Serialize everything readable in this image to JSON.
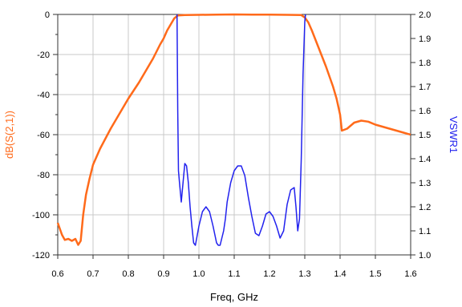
{
  "chart_data": {
    "type": "line",
    "xlabel": "Freq, GHz",
    "xlim": [
      0.6,
      1.6
    ],
    "x_ticks": [
      "0.6",
      "0.7",
      "0.8",
      "0.9",
      "1.0",
      "1.1",
      "1.2",
      "1.3",
      "1.4",
      "1.5",
      "1.6"
    ],
    "y_left": {
      "label": "dB(S(2,1))",
      "range": [
        -120,
        0
      ],
      "ticks": [
        "0",
        "-20",
        "-40",
        "-60",
        "-80",
        "-100",
        "-120"
      ],
      "color": "#ff6a1a"
    },
    "y_right": {
      "label": "VSWR1",
      "range": [
        1.0,
        2.0
      ],
      "ticks": [
        "1.0",
        "1.1",
        "1.2",
        "1.3",
        "1.4",
        "1.5",
        "1.6",
        "1.7",
        "1.8",
        "1.9",
        "2.0"
      ],
      "color": "#2222ee"
    },
    "grid": true,
    "series": [
      {
        "name": "dB(S(2,1))",
        "axis": "left",
        "color": "#ff6a1a",
        "x": [
          0.6,
          0.612,
          0.62,
          0.63,
          0.64,
          0.65,
          0.658,
          0.665,
          0.672,
          0.68,
          0.69,
          0.7,
          0.72,
          0.75,
          0.78,
          0.8,
          0.83,
          0.85,
          0.87,
          0.89,
          0.9,
          0.91,
          0.92,
          0.93,
          0.94,
          0.96,
          1.0,
          1.05,
          1.1,
          1.15,
          1.2,
          1.25,
          1.29,
          1.3,
          1.31,
          1.32,
          1.34,
          1.36,
          1.38,
          1.39,
          1.4,
          1.405,
          1.42,
          1.44,
          1.46,
          1.48,
          1.5,
          1.54,
          1.58,
          1.6
        ],
        "y": [
          -104,
          -110,
          -112.5,
          -112,
          -113,
          -112,
          -115,
          -113,
          -100,
          -90,
          -82,
          -75,
          -67,
          -57,
          -48,
          -42,
          -34,
          -28,
          -22,
          -15,
          -12,
          -8,
          -5,
          -2,
          -0.5,
          -0.3,
          -0.2,
          -0.1,
          0,
          -0.1,
          -0.1,
          -0.2,
          -0.3,
          -1.5,
          -4,
          -8,
          -17,
          -26,
          -36,
          -42,
          -50,
          -58,
          -57,
          -54,
          -53,
          -53.5,
          -55,
          -57,
          -59,
          -60
        ]
      },
      {
        "name": "VSWR1",
        "axis": "right",
        "color": "#2222ee",
        "x": [
          0.938,
          0.94,
          0.942,
          0.945,
          0.95,
          0.955,
          0.96,
          0.965,
          0.97,
          0.975,
          0.98,
          0.985,
          0.99,
          1.0,
          1.01,
          1.02,
          1.03,
          1.04,
          1.05,
          1.055,
          1.06,
          1.07,
          1.075,
          1.08,
          1.09,
          1.1,
          1.11,
          1.12,
          1.13,
          1.14,
          1.15,
          1.16,
          1.17,
          1.18,
          1.19,
          1.2,
          1.21,
          1.22,
          1.23,
          1.24,
          1.25,
          1.26,
          1.27,
          1.275,
          1.28,
          1.285,
          1.29,
          1.295,
          1.3,
          1.302
        ],
        "y": [
          2.0,
          1.6,
          1.35,
          1.3,
          1.22,
          1.3,
          1.38,
          1.37,
          1.3,
          1.2,
          1.12,
          1.05,
          1.04,
          1.12,
          1.18,
          1.2,
          1.18,
          1.12,
          1.05,
          1.04,
          1.04,
          1.1,
          1.15,
          1.22,
          1.3,
          1.35,
          1.37,
          1.37,
          1.33,
          1.24,
          1.16,
          1.09,
          1.08,
          1.12,
          1.17,
          1.18,
          1.16,
          1.12,
          1.07,
          1.1,
          1.21,
          1.27,
          1.28,
          1.2,
          1.1,
          1.15,
          1.4,
          1.75,
          1.97,
          2.0
        ]
      }
    ]
  }
}
